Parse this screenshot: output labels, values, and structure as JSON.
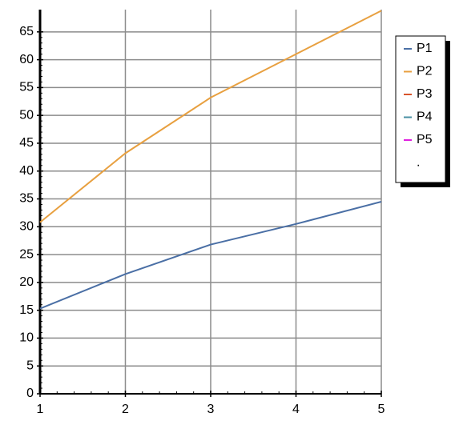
{
  "chart_data": {
    "type": "line",
    "x": [
      1,
      2,
      3,
      4,
      5
    ],
    "xlim": [
      1,
      5
    ],
    "xticks": [
      1,
      2,
      3,
      4,
      5
    ],
    "ylim": [
      0,
      69
    ],
    "yticks": [
      0,
      5,
      10,
      15,
      20,
      25,
      30,
      35,
      40,
      45,
      50,
      55,
      60,
      65
    ],
    "grid": true,
    "legend": "right",
    "series": [
      {
        "name": "P1",
        "color": "#4a6fa5",
        "values": [
          15.3,
          21.5,
          26.8,
          30.5,
          34.5
        ]
      },
      {
        "name": "P2",
        "color": "#e8a040",
        "values": [
          30.8,
          43.2,
          53.2,
          61,
          68.8
        ]
      },
      {
        "name": "P3",
        "color": "#d9542b",
        "values": [
          null,
          null,
          null,
          null,
          null
        ]
      },
      {
        "name": "P4",
        "color": "#4a90a4",
        "values": [
          null,
          null,
          null,
          null,
          null
        ]
      },
      {
        "name": "P5",
        "color": "#e020e0",
        "values": [
          null,
          null,
          null,
          null,
          null
        ]
      },
      {
        "name": ".",
        "values": [
          null,
          null,
          null,
          null,
          null
        ]
      }
    ]
  }
}
